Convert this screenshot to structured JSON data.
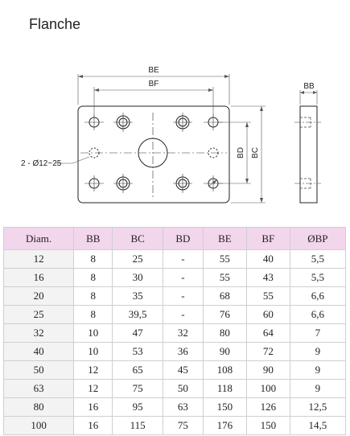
{
  "title": "Flanche",
  "drawing": {
    "label_be": "BE",
    "label_bf": "BF",
    "label_bb": "BB",
    "label_bd": "BD",
    "label_bc": "BC",
    "label_holes": "2 - Ø12~25"
  },
  "table": {
    "headers": [
      "Diam.",
      "BB",
      "BC",
      "BD",
      "BE",
      "BF",
      "ØBP"
    ],
    "rows": [
      [
        "12",
        "8",
        "25",
        "-",
        "55",
        "40",
        "5,5"
      ],
      [
        "16",
        "8",
        "30",
        "-",
        "55",
        "43",
        "5,5"
      ],
      [
        "20",
        "8",
        "35",
        "-",
        "68",
        "55",
        "6,6"
      ],
      [
        "25",
        "8",
        "39,5",
        "-",
        "76",
        "60",
        "6,6"
      ],
      [
        "32",
        "10",
        "47",
        "32",
        "80",
        "64",
        "7"
      ],
      [
        "40",
        "10",
        "53",
        "36",
        "90",
        "72",
        "9"
      ],
      [
        "50",
        "12",
        "65",
        "45",
        "108",
        "90",
        "9"
      ],
      [
        "63",
        "12",
        "75",
        "50",
        "118",
        "100",
        "9"
      ],
      [
        "80",
        "16",
        "95",
        "63",
        "150",
        "126",
        "12,5"
      ],
      [
        "100",
        "16",
        "115",
        "75",
        "176",
        "150",
        "14,5"
      ]
    ]
  }
}
